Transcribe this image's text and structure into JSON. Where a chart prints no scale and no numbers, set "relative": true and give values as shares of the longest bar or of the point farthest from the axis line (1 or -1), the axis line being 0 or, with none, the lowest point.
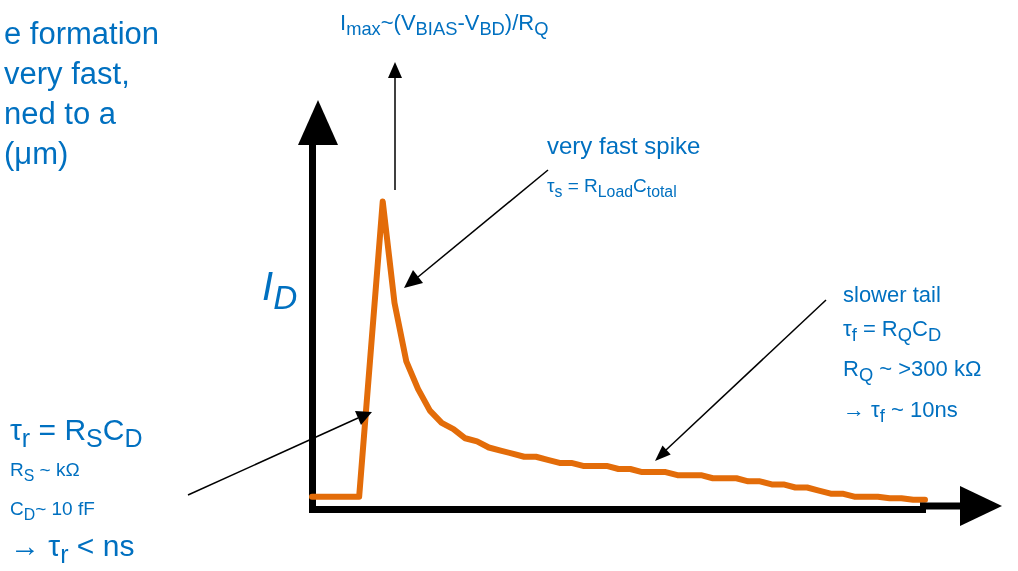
{
  "chart_data": {
    "type": "line",
    "relative": true,
    "grid": false,
    "legend": false,
    "ylabel": "I$_{D}$",
    "categories": [
      null,
      null,
      null,
      null,
      null,
      null,
      null,
      null,
      null,
      null,
      null,
      null,
      null,
      null,
      null,
      null,
      null,
      null,
      null,
      null,
      null,
      null,
      null,
      null,
      null,
      null,
      null,
      null,
      null,
      null,
      null,
      null,
      null,
      null,
      null,
      null,
      null,
      null,
      null,
      null,
      null,
      null,
      null,
      null,
      null,
      null,
      null,
      null,
      null,
      null,
      null,
      null,
      null
    ],
    "series": [
      {
        "color": "#e36c09",
        "values": [
          0.04,
          0.04,
          0.04,
          0.04,
          0.04,
          0.52,
          1,
          0.67,
          0.48,
          0.39,
          0.32,
          0.28,
          0.26,
          0.23,
          0.22,
          0.2,
          0.19,
          0.18,
          0.17,
          0.17,
          0.16,
          0.15,
          0.15,
          0.14,
          0.14,
          0.14,
          0.13,
          0.13,
          0.12,
          0.12,
          0.12,
          0.11,
          0.11,
          0.11,
          0.1,
          0.1,
          0.1,
          0.09,
          0.09,
          0.08,
          0.08,
          0.07,
          0.07,
          0.06,
          0.05,
          0.05,
          0.04,
          0.04,
          0.04,
          0.035,
          0.035,
          0.03,
          0.03
        ]
      }
    ],
    "annotations": [
      "e formation\nvery fast,\nned to a\n(μm)",
      "I$_{max}$~(V$_{BIAS}$-V$_{BD}$)/R$_{Q}$",
      "very fast spike",
      "τ$_{s}$ = R$_{Load}$C$_{total}$",
      "slower tail\nτ$_{f}$ = R$_{Q}$C$_{D}$\nR$_{Q}$ ~ >300 kΩ\n→ τ$_{f}$ ~ 10ns",
      "τ$_{r}$ = R$_{S}$C$_{D}$",
      "R$_{S}$ ~ kΩ\nC$_{D}$~ 10 fF",
      "→ τ$_{r}$ < ns"
    ]
  }
}
